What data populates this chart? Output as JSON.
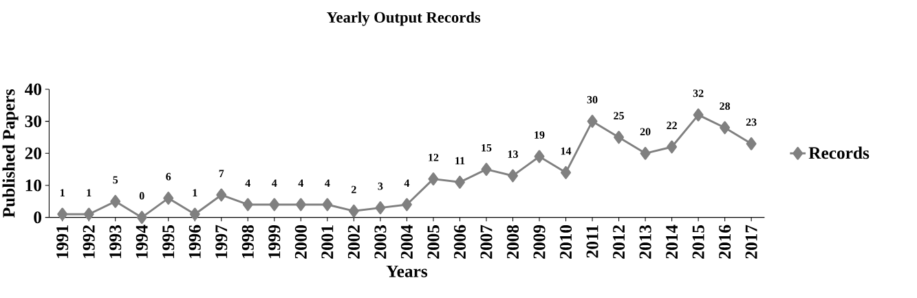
{
  "chart_data": {
    "type": "line",
    "title": "Yearly Output Records",
    "xlabel": "Years",
    "ylabel": "Published Papers",
    "categories": [
      "1991",
      "1992",
      "1993",
      "1994",
      "1995",
      "1996",
      "1997",
      "1998",
      "1999",
      "2000",
      "2001",
      "2002",
      "2003",
      "2004",
      "2005",
      "2006",
      "2007",
      "2008",
      "2009",
      "2010",
      "2011",
      "2012",
      "2013",
      "2014",
      "2015",
      "2016",
      "2017"
    ],
    "series": [
      {
        "name": "Records",
        "color": "#808080",
        "values": [
          1,
          1,
          5,
          0,
          6,
          1,
          7,
          4,
          4,
          4,
          4,
          2,
          3,
          4,
          12,
          11,
          15,
          13,
          19,
          14,
          30,
          25,
          20,
          22,
          32,
          28,
          23
        ]
      }
    ],
    "ylim": [
      0,
      40
    ],
    "yticks": [
      0,
      10,
      20,
      30,
      40
    ],
    "legend": "right",
    "marker": "diamond",
    "data_labels": true
  }
}
